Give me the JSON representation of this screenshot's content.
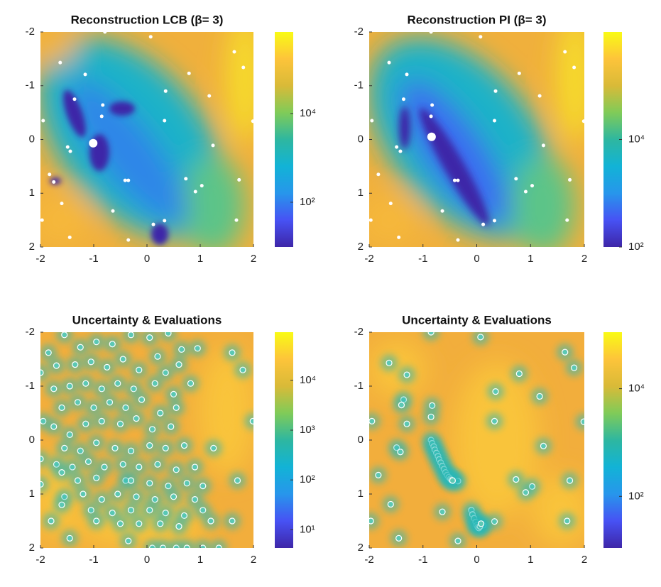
{
  "chart_data": [
    {
      "type": "scatter",
      "title": "Reconstruction LCB (β= 3)",
      "xlim": [
        -2,
        2
      ],
      "ylim": [
        -2,
        2
      ],
      "y_reversed": true,
      "xticks": [
        -2,
        -1,
        0,
        1,
        2
      ],
      "yticks": [
        -2,
        -1,
        0,
        1,
        2
      ],
      "colorbar": {
        "scale": "log",
        "colormap": "parula",
        "lim": [
          9.8,
          690000
        ],
        "ticks": [
          {
            "value": 100,
            "label": "10²"
          },
          {
            "value": 10000,
            "label": "10⁴"
          }
        ]
      },
      "series": [
        {
          "color": "#ffffff",
          "marker_size": 2.5,
          "x": [
            -0.79,
            -1.63,
            -1.16,
            0.07,
            0.79,
            1.64,
            1.81,
            1.17,
            0.35,
            -1.95,
            -1.36,
            -0.83,
            -0.85,
            0.33,
            1.99,
            -1.49,
            -1.44,
            0.73,
            1.03,
            0.91,
            1.24,
            1.73,
            -1.83,
            -0.41,
            -0.35,
            -1.6,
            -1.97,
            -0.64,
            -1.45,
            -0.35,
            0.12,
            0.33,
            1.68,
            -1.75
          ],
          "y": [
            -2.0,
            -1.43,
            -1.21,
            -1.91,
            -1.23,
            -1.63,
            -1.34,
            -0.81,
            -0.9,
            -0.35,
            -0.75,
            -0.64,
            -0.43,
            -0.35,
            -0.34,
            0.14,
            0.22,
            0.73,
            0.86,
            0.97,
            0.11,
            0.75,
            0.65,
            0.76,
            0.76,
            1.19,
            1.5,
            1.33,
            1.82,
            1.87,
            1.58,
            1.51,
            1.5,
            0.79
          ]
        },
        {
          "color": "#ffffff",
          "marker_size": 6,
          "x": [
            -1.01
          ],
          "y": [
            0.07
          ]
        }
      ]
    },
    {
      "type": "scatter",
      "title": "Reconstruction PI (β= 3)",
      "xlim": [
        -2,
        2
      ],
      "ylim": [
        -2,
        2
      ],
      "y_reversed": true,
      "xticks": [
        -2,
        -1,
        0,
        1,
        2
      ],
      "yticks": [
        -2,
        -1,
        0,
        1,
        2
      ],
      "colorbar": {
        "scale": "log",
        "colormap": "parula",
        "lim": [
          100,
          1000000
        ],
        "ticks": [
          {
            "value": 100,
            "label": "10²"
          },
          {
            "value": 10000,
            "label": "10⁴"
          }
        ]
      },
      "series": [
        {
          "color": "#ffffff",
          "marker_size": 2.5,
          "x": [
            -0.85,
            -1.63,
            -1.3,
            0.07,
            0.79,
            1.64,
            1.81,
            1.17,
            0.35,
            -1.95,
            -1.36,
            -0.83,
            -0.85,
            0.33,
            1.99,
            -1.49,
            -1.42,
            0.73,
            1.03,
            0.91,
            1.24,
            1.73,
            -1.83,
            -0.41,
            -0.35,
            -1.6,
            -1.97,
            -0.64,
            -1.45,
            -0.35,
            0.12,
            0.33,
            1.68
          ],
          "y": [
            -2.0,
            -1.43,
            -1.21,
            -1.91,
            -1.23,
            -1.63,
            -1.34,
            -0.81,
            -0.9,
            -0.35,
            -0.75,
            -0.64,
            -0.43,
            -0.35,
            -0.34,
            0.14,
            0.22,
            0.73,
            0.86,
            0.97,
            0.11,
            0.75,
            0.65,
            0.76,
            0.76,
            1.19,
            1.5,
            1.33,
            1.82,
            1.87,
            1.58,
            1.51,
            1.5
          ]
        },
        {
          "color": "#ffffff",
          "marker_size": 6,
          "x": [
            -0.84
          ],
          "y": [
            -0.05
          ]
        }
      ]
    },
    {
      "type": "scatter",
      "title": "Uncertainty & Evaluations",
      "xlim": [
        -2,
        2
      ],
      "ylim": [
        -2,
        2
      ],
      "y_reversed": true,
      "xticks": [
        -2,
        -1,
        0,
        1,
        2
      ],
      "yticks": [
        -2,
        -1,
        0,
        1,
        2
      ],
      "colorbar": {
        "scale": "log",
        "colormap": "parula",
        "lim": [
          4.3,
          93000
        ],
        "ticks": [
          {
            "value": 10,
            "label": "10¹"
          },
          {
            "value": 100,
            "label": "10²"
          },
          {
            "value": 1000,
            "label": "10³"
          },
          {
            "value": 10000,
            "label": "10⁴"
          }
        ]
      },
      "series": [
        {
          "color": "#ffffff",
          "fill": "#5cc8b4",
          "halo": "#27b7b8",
          "marker_size": 4,
          "x": [
            -1.85,
            -1.55,
            -1.25,
            -0.95,
            -0.65,
            -0.3,
            0.05,
            0.4,
            0.65,
            0.95,
            1.6,
            1.8,
            -2,
            -1.7,
            -1.35,
            -1.05,
            -0.75,
            -0.45,
            -0.15,
            0.2,
            0.35,
            0.6,
            0.82,
            -1.75,
            -1.45,
            -1.15,
            -0.85,
            -0.55,
            -0.25,
            0.15,
            0.5,
            -1.95,
            -1.6,
            -1.3,
            -1.0,
            -0.7,
            -0.4,
            -0.1,
            0.25,
            0.55,
            1.99,
            -1.75,
            -1.45,
            -1.15,
            -0.85,
            -0.5,
            -0.2,
            0.1,
            0.45,
            -1.55,
            -1.25,
            -0.95,
            -0.6,
            -0.3,
            0.05,
            0.35,
            0.7,
            1.25,
            -2,
            -1.7,
            -1.4,
            -1.1,
            -0.8,
            -0.45,
            -0.15,
            0.2,
            0.55,
            0.9,
            -1.6,
            -1.3,
            -0.95,
            -0.4,
            -0.3,
            0.05,
            0.4,
            0.75,
            1.05,
            1.7,
            -2,
            -1.55,
            -1.2,
            -0.85,
            -0.55,
            -0.2,
            0.15,
            0.5,
            0.9,
            -1.6,
            -1.05,
            -0.65,
            -0.3,
            0.05,
            0.35,
            0.7,
            1.05,
            -1.8,
            -0.95,
            -0.5,
            -0.15,
            0.25,
            0.6,
            1.2,
            1.6,
            -1.45,
            -0.35,
            0.1,
            0.3,
            0.55,
            0.75,
            1.05,
            1.35
          ],
          "y": [
            -1.62,
            -1.95,
            -1.72,
            -1.82,
            -1.78,
            -1.95,
            -1.9,
            -1.98,
            -1.68,
            -1.7,
            -1.62,
            -1.3,
            -1.25,
            -1.38,
            -1.4,
            -1.45,
            -1.35,
            -1.5,
            -1.3,
            -1.55,
            -1.25,
            -1.4,
            -1.05,
            -0.95,
            -1.0,
            -1.05,
            -0.95,
            -1.05,
            -0.95,
            -1.05,
            -0.85,
            -0.35,
            -0.6,
            -0.7,
            -0.6,
            -0.7,
            -0.6,
            -0.75,
            -0.5,
            -0.6,
            -0.35,
            -0.25,
            -0.1,
            -0.3,
            -0.35,
            -0.3,
            -0.4,
            -0.2,
            -0.25,
            0.15,
            0.2,
            0.05,
            0.15,
            0.2,
            0.1,
            0.15,
            0.1,
            0.15,
            0.35,
            0.45,
            0.5,
            0.4,
            0.5,
            0.45,
            0.5,
            0.45,
            0.55,
            0.5,
            0.6,
            0.75,
            0.7,
            0.75,
            0.75,
            0.8,
            0.85,
            0.8,
            0.85,
            0.75,
            0.82,
            1.05,
            1.0,
            1.1,
            1.0,
            1.05,
            1.1,
            1.05,
            1.1,
            1.2,
            1.3,
            1.35,
            1.3,
            1.3,
            1.35,
            1.4,
            1.3,
            1.5,
            1.5,
            1.55,
            1.55,
            1.55,
            1.6,
            1.5,
            1.5,
            1.82,
            1.87,
            2,
            2,
            2,
            2,
            2,
            2
          ]
        }
      ]
    },
    {
      "type": "scatter",
      "title": "Uncertainty & Evaluations",
      "xlim": [
        -2,
        2
      ],
      "ylim": [
        -2,
        2
      ],
      "y_reversed": true,
      "xticks": [
        -2,
        -1,
        0,
        1,
        2
      ],
      "yticks": [
        -2,
        -1,
        0,
        1,
        2
      ],
      "colorbar": {
        "scale": "log",
        "colormap": "parula",
        "lim": [
          11,
          112000
        ],
        "ticks": [
          {
            "value": 100,
            "label": "10²"
          },
          {
            "value": 10000,
            "label": "10⁴"
          }
        ]
      },
      "series": [
        {
          "color": "#ffffff",
          "fill": "#5cc8b4",
          "halo": "#27b7b8",
          "marker_size": 4,
          "x": [
            -0.85,
            -1.63,
            -1.3,
            0.07,
            0.79,
            1.64,
            1.81,
            1.17,
            0.35,
            -1.95,
            -1.36,
            -0.83,
            -0.85,
            0.33,
            1.99,
            -1.49,
            -1.42,
            0.73,
            1.03,
            0.91,
            1.24,
            1.73,
            -1.83,
            -0.41,
            -0.35,
            -1.6,
            -1.97,
            -0.64,
            -1.45,
            -0.35,
            0.12,
            0.33,
            1.68,
            -1.4,
            -1.3,
            -0.85,
            -0.83,
            -0.8,
            -0.78,
            -0.75,
            -0.72,
            -0.7,
            -0.67,
            -0.64,
            -0.61,
            -0.58,
            -0.55,
            -0.52,
            -0.49,
            -0.47,
            -0.45,
            -0.1,
            -0.08,
            -0.05,
            -0.02,
            0.0,
            0.02,
            0.04,
            0.06,
            0.08
          ],
          "y": [
            -2.0,
            -1.43,
            -1.21,
            -1.91,
            -1.23,
            -1.63,
            -1.34,
            -0.81,
            -0.9,
            -0.35,
            -0.75,
            -0.64,
            -0.43,
            -0.35,
            -0.34,
            0.14,
            0.22,
            0.73,
            0.86,
            0.97,
            0.11,
            0.75,
            0.65,
            0.76,
            0.76,
            1.19,
            1.5,
            1.33,
            1.82,
            1.87,
            1.58,
            1.51,
            1.5,
            -0.65,
            -0.3,
            0.0,
            0.06,
            0.12,
            0.18,
            0.24,
            0.3,
            0.36,
            0.42,
            0.48,
            0.54,
            0.6,
            0.65,
            0.69,
            0.72,
            0.74,
            0.75,
            1.3,
            1.38,
            1.45,
            1.52,
            1.58,
            1.61,
            1.63,
            1.6,
            1.55
          ]
        }
      ]
    }
  ]
}
